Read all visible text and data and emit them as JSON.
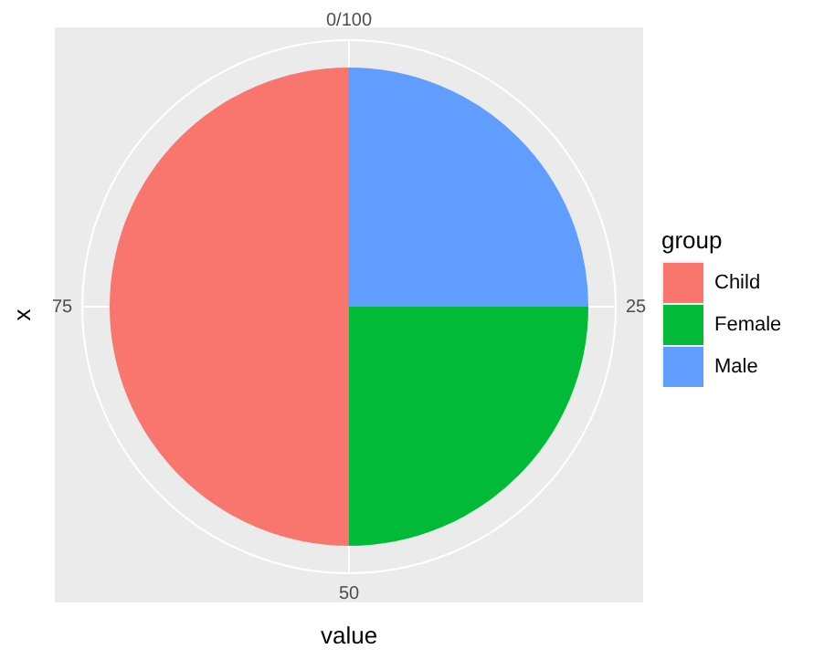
{
  "chart_data": {
    "type": "pie",
    "xlabel": "value",
    "ylabel": "x",
    "legend_title": "group",
    "categories": [
      "Child",
      "Female",
      "Male"
    ],
    "values": [
      50,
      25,
      25
    ],
    "colors": [
      "#f8766d",
      "#00ba38",
      "#619cff"
    ],
    "annotations": [
      "0/100",
      "25",
      "50",
      "75"
    ],
    "grid": true,
    "legend": "right"
  }
}
